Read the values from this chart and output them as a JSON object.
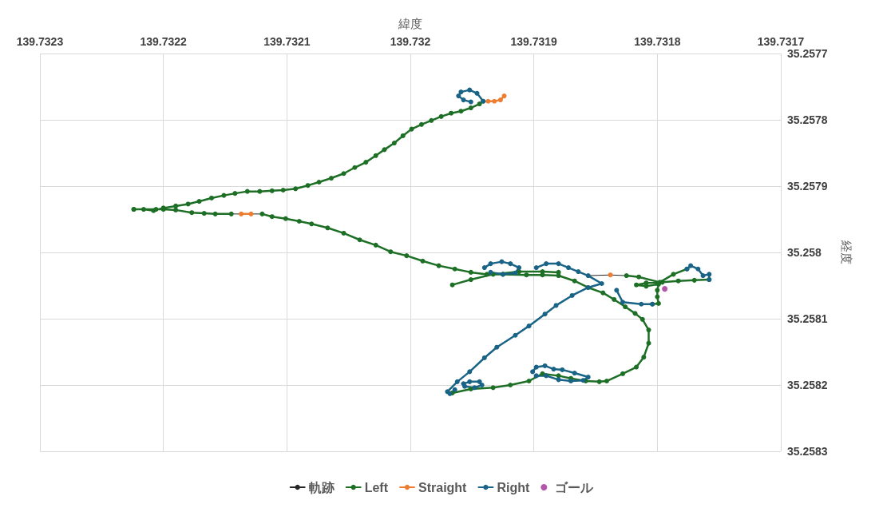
{
  "chart_data": {
    "type": "line",
    "xlabel": "緯度",
    "ylabel": "経度",
    "xlim": [
      139.7323,
      139.7317
    ],
    "xticks": [
      139.7323,
      139.7322,
      139.7321,
      139.732,
      139.7319,
      139.7318,
      139.7317
    ],
    "ylim": [
      35.2583,
      35.2577
    ],
    "yticks": [
      35.2577,
      35.2578,
      35.2579,
      35.258,
      35.2581,
      35.2582,
      35.2583
    ],
    "grid": true,
    "legend": "bottom",
    "marker": "circle",
    "series": [
      {
        "name": "軌跡",
        "color": "#262626",
        "marker": "none",
        "x": [
          139.731941,
          139.731937,
          null,
          139.732145,
          139.732137,
          null,
          139.732129,
          139.73212,
          null,
          139.731856,
          139.731838,
          139.731825
        ],
        "values": [
          35.257772,
          35.257772,
          null,
          35.257942,
          35.257942,
          null,
          35.257942,
          35.257942,
          null,
          35.258035,
          35.258034,
          35.258035
        ]
      },
      {
        "name": "Left",
        "color": "#1e6f26",
        "x": [
          139.732224,
          139.732216,
          139.732208,
          139.7322,
          139.73219,
          139.73218,
          139.732171,
          139.732161,
          139.732151,
          139.732142,
          139.732132,
          139.732122,
          139.732112,
          139.732103,
          139.732093,
          139.732083,
          139.732074,
          139.732064,
          139.732054,
          139.732045,
          139.732036,
          139.732028,
          139.732021,
          139.732013,
          139.732006,
          139.731999,
          139.731991,
          139.731983,
          139.731975,
          139.731967,
          139.731959,
          139.731951,
          139.731944,
          139.731941,
          null,
          139.732224,
          139.732206,
          139.7322,
          139.73219,
          139.732177,
          139.732167,
          139.732158,
          139.732145,
          null,
          139.73212,
          139.732112,
          139.732101,
          139.73209,
          139.73208,
          139.732067,
          139.732054,
          139.732041,
          139.732028,
          139.732016,
          139.732003,
          139.73199,
          139.731977,
          139.731964,
          139.731951,
          139.731938,
          139.731925,
          139.731906,
          139.731893,
          139.73188,
          139.731867,
          139.731856,
          139.731844,
          139.731835,
          139.731826,
          139.731818,
          139.731812,
          139.731807,
          139.731807,
          139.731811,
          139.731817,
          139.731828,
          139.731841,
          139.731847,
          139.731858,
          139.73187,
          139.73188,
          139.731893,
          139.731904,
          139.731919,
          139.731933,
          139.731951,
          139.731966,
          null,
          139.731966,
          139.731951,
          139.731933,
          139.731912,
          139.731893,
          139.73188,
          null,
          139.731825,
          139.731815,
          139.731798,
          139.731787,
          139.731776,
          null,
          139.731758,
          139.73177,
          139.731783,
          139.731796,
          139.731809,
          139.731817,
          139.731809,
          139.731799,
          139.7318,
          139.7318,
          139.731799,
          139.731804
        ],
        "values": [
          35.257935,
          35.257935,
          35.257937,
          35.257933,
          35.25793,
          35.257927,
          35.257923,
          35.257918,
          35.257914,
          35.257911,
          35.257908,
          35.257908,
          35.257907,
          35.257906,
          35.257904,
          35.257899,
          35.257894,
          35.257888,
          35.257881,
          35.257872,
          35.257864,
          35.257854,
          35.257845,
          35.257835,
          35.257824,
          35.257814,
          35.257807,
          35.257801,
          35.257795,
          35.25779,
          35.257787,
          35.257782,
          35.257776,
          35.257772,
          null,
          35.257935,
          35.257935,
          35.257935,
          35.257936,
          35.25794,
          35.257941,
          35.257942,
          35.257942,
          null,
          35.257942,
          35.257946,
          35.257949,
          35.257953,
          35.257957,
          35.257963,
          35.257971,
          35.257981,
          35.257989,
          35.257999,
          35.258005,
          35.258013,
          35.25802,
          35.258025,
          35.25803,
          35.258033,
          35.258033,
          35.258034,
          35.258034,
          35.258035,
          35.258043,
          35.258053,
          35.258061,
          35.258071,
          35.258082,
          35.258092,
          35.258101,
          35.258117,
          35.258137,
          35.258158,
          35.258173,
          35.258183,
          35.258194,
          35.258195,
          35.258194,
          35.25819,
          35.258186,
          35.258183,
          35.258194,
          35.2582,
          35.258204,
          35.258206,
          35.258212,
          null,
          35.258049,
          35.258041,
          35.258033,
          35.258029,
          35.258029,
          35.25803,
          null,
          35.258035,
          35.258037,
          35.258045,
          35.258033,
          35.258025,
          null,
          35.258041,
          35.258042,
          35.258043,
          35.258045,
          35.258046,
          35.258049,
          35.258051,
          35.258048,
          35.258057,
          35.258067,
          35.258077,
          35.258078
        ]
      },
      {
        "name": "Straight",
        "color": "#ed7d31",
        "x": [
          139.731937,
          139.731932,
          139.731927,
          139.731924,
          null,
          139.732137,
          139.732129,
          null,
          139.731838
        ],
        "values": [
          35.257772,
          35.257772,
          35.25777,
          35.257764,
          null,
          35.257942,
          35.257942,
          null,
          35.258034
        ]
      },
      {
        "name": "Right",
        "color": "#196386",
        "x": [
          139.731941,
          139.731946,
          139.731952,
          139.731959,
          139.731961,
          139.731957,
          139.731951,
          null,
          139.73194,
          139.731935,
          139.731926,
          139.731919,
          139.731912,
          139.731915,
          139.731925,
          139.731935,
          null,
          139.731898,
          139.73189,
          139.73188,
          139.731872,
          139.731864,
          139.731856,
          139.731845,
          139.731856,
          139.731869,
          139.731882,
          139.731891,
          139.731904,
          139.731915,
          139.73193,
          139.73194,
          139.731952,
          139.731962,
          139.73197,
          139.731968,
          139.731964,
          null,
          139.731957,
          139.731952,
          139.731944,
          139.731942,
          139.731948,
          139.731956,
          null,
          139.731901,
          139.731898,
          139.731891,
          139.731884,
          139.731877,
          139.731867,
          139.731856,
          139.73186,
          139.73187,
          139.73188,
          139.73189,
          139.731898,
          null,
          139.731833,
          139.731828,
          139.731813,
          139.731804,
          null,
          139.731776,
          139.731773,
          139.731767,
          139.731763,
          139.731758,
          139.731758
        ],
        "values": [
          35.257772,
          35.25776,
          35.257755,
          35.257758,
          35.257764,
          35.25777,
          35.257773,
          null,
          35.258023,
          35.258017,
          35.258014,
          35.258017,
          35.258023,
          35.258031,
          35.258033,
          35.25803,
          null,
          35.258023,
          35.258017,
          35.258017,
          35.258023,
          35.258029,
          35.258035,
          35.258047,
          35.258053,
          35.258065,
          35.25808,
          35.258093,
          35.258111,
          35.258125,
          35.258143,
          35.258159,
          35.25818,
          35.258195,
          35.25821,
          35.258213,
          35.258207,
          null,
          35.258198,
          35.258195,
          35.258195,
          35.2582,
          35.258204,
          35.258202,
          null,
          35.25818,
          35.258173,
          35.258171,
          35.258176,
          35.258177,
          35.258182,
          35.258188,
          35.258193,
          35.258194,
          35.258192,
          35.258186,
          35.258186,
          null,
          35.258057,
          35.258075,
          35.258078,
          35.258078,
          null,
          35.258025,
          35.25802,
          35.258025,
          35.258035,
          35.258033,
          35.258041
        ]
      },
      {
        "name": "ゴール",
        "color": "#a02b93",
        "type": "scatter",
        "x": [
          139.731794
        ],
        "values": [
          35.258055
        ]
      }
    ]
  }
}
